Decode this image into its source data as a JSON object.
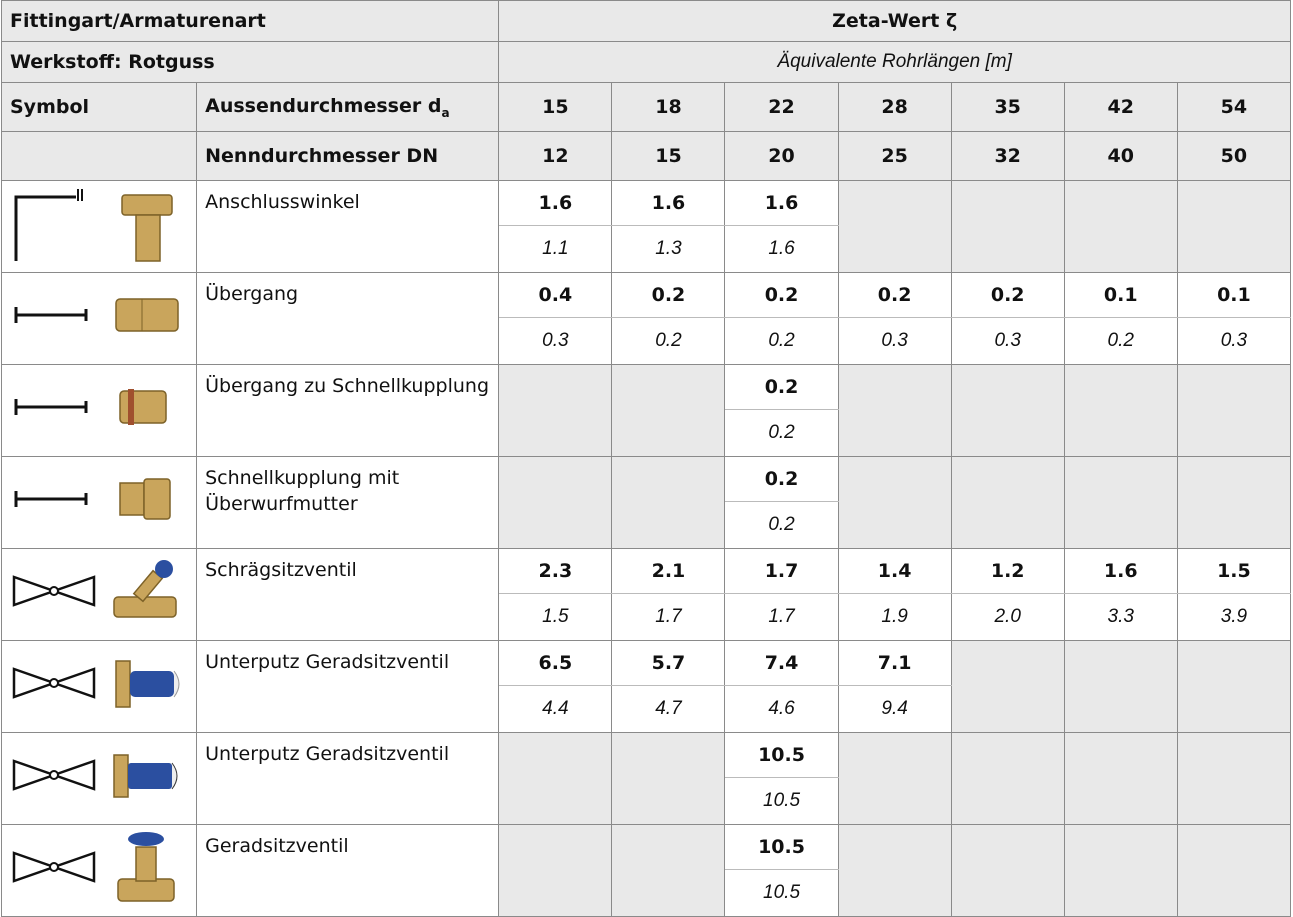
{
  "header": {
    "fitting": "Fittingart/Armaturenart",
    "zeta": "Zeta-Wert ζ",
    "material": "Werkstoff: Rotguss",
    "equivalent": "Äquivalente Rohrlängen [m]",
    "symbol": "Symbol",
    "outer_diameter": "Aussendurchmesser d",
    "outer_diameter_sub": "a",
    "outer_diameters": [
      "15",
      "18",
      "22",
      "28",
      "35",
      "42",
      "54"
    ],
    "nominal_diameter": "Nenndurchmesser DN",
    "nominal_diameters": [
      "12",
      "15",
      "20",
      "25",
      "32",
      "40",
      "50"
    ]
  },
  "rows": [
    {
      "name": "Anschlusswinkel",
      "zeta": [
        "1.6",
        "1.6",
        "1.6",
        null,
        null,
        null,
        null
      ],
      "length": [
        "1.1",
        "1.3",
        "1.6",
        null,
        null,
        null,
        null
      ]
    },
    {
      "name": "Übergang",
      "zeta": [
        "0.4",
        "0.2",
        "0.2",
        "0.2",
        "0.2",
        "0.1",
        "0.1"
      ],
      "length": [
        "0.3",
        "0.2",
        "0.2",
        "0.3",
        "0.3",
        "0.2",
        "0.3"
      ]
    },
    {
      "name": "Übergang zu Schnellkupp­lung",
      "zeta": [
        null,
        null,
        "0.2",
        null,
        null,
        null,
        null
      ],
      "length": [
        null,
        null,
        "0.2",
        null,
        null,
        null,
        null
      ]
    },
    {
      "name": "Schnellkupplung mit Überwurfmutter",
      "zeta": [
        null,
        null,
        "0.2",
        null,
        null,
        null,
        null
      ],
      "length": [
        null,
        null,
        "0.2",
        null,
        null,
        null,
        null
      ]
    },
    {
      "name": "Schrägsitzventil",
      "zeta": [
        "2.3",
        "2.1",
        "1.7",
        "1.4",
        "1.2",
        "1.6",
        "1.5"
      ],
      "length": [
        "1.5",
        "1.7",
        "1.7",
        "1.9",
        "2.0",
        "3.3",
        "3.9"
      ]
    },
    {
      "name": "Unterputz Geradsitzventil",
      "zeta": [
        "6.5",
        "5.7",
        "7.4",
        "7.1",
        null,
        null,
        null
      ],
      "length": [
        "4.4",
        "4.7",
        "4.6",
        "9.4",
        null,
        null,
        null
      ]
    },
    {
      "name": "Unterputz Geradsitzventil",
      "zeta": [
        null,
        null,
        "10.5",
        null,
        null,
        null,
        null
      ],
      "length": [
        null,
        null,
        "10.5",
        null,
        null,
        null,
        null
      ]
    },
    {
      "name": "Geradsitzventil",
      "zeta": [
        null,
        null,
        "10.5",
        null,
        null,
        null,
        null
      ],
      "length": [
        null,
        null,
        "10.5",
        null,
        null,
        null,
        null
      ]
    }
  ]
}
